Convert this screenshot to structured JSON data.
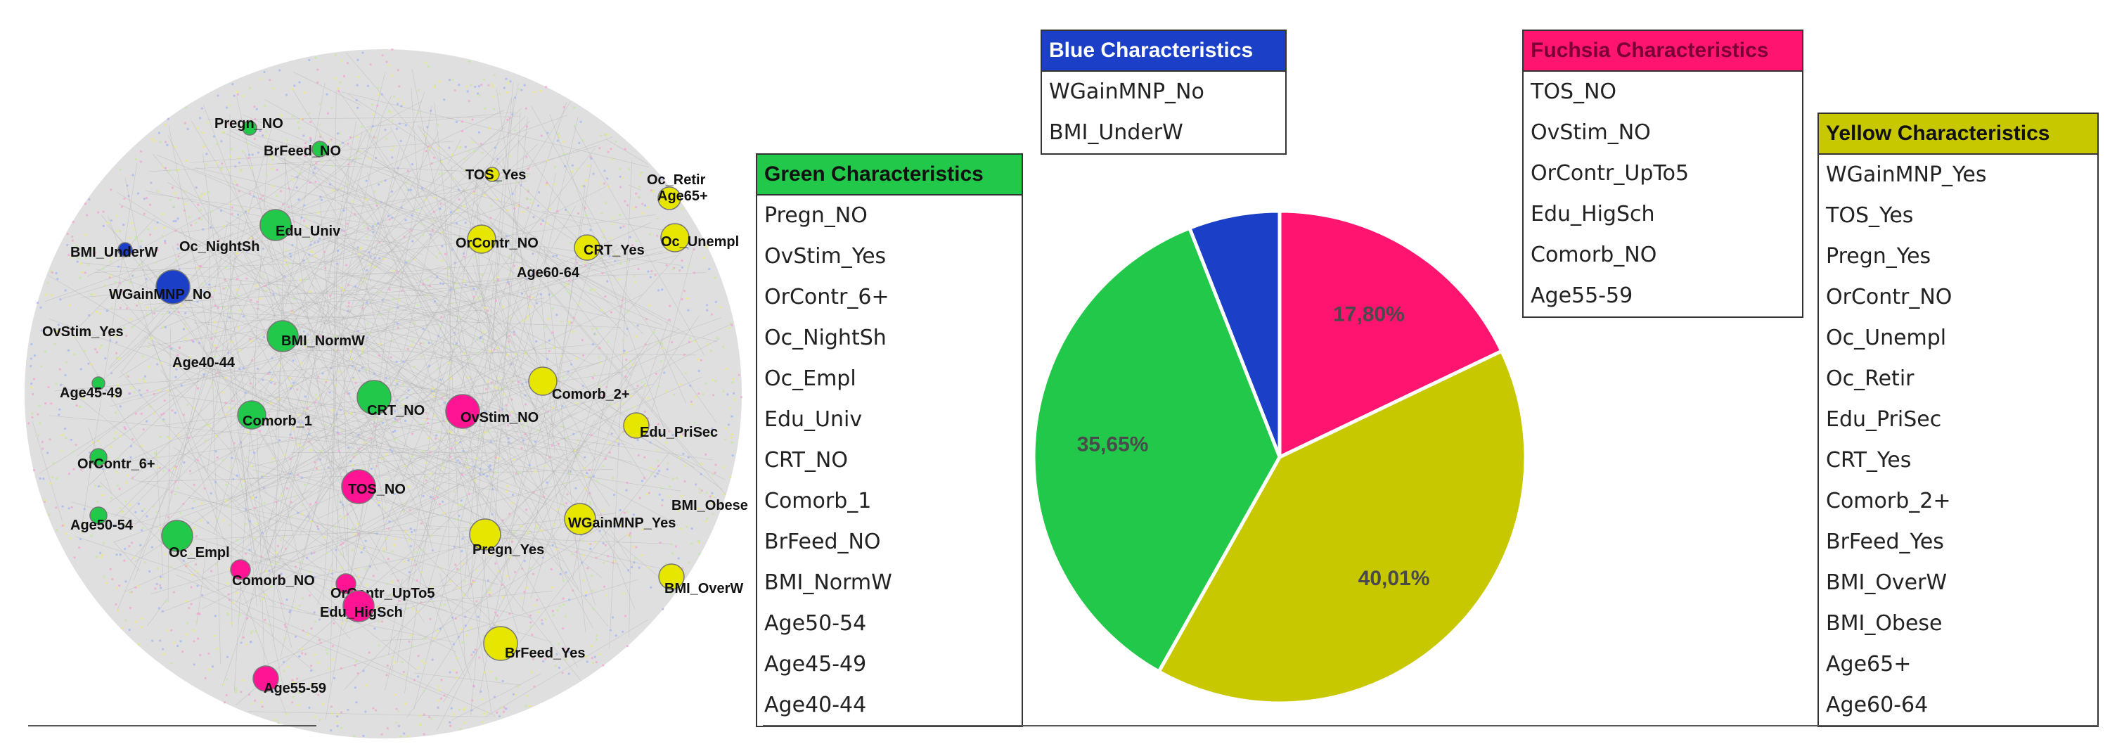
{
  "legends": {
    "green": {
      "title": "Green Characteristics",
      "color": "#22c84a",
      "items": [
        "Pregn_NO",
        "OvStim_Yes",
        "OrContr_6+",
        "Oc_NightSh",
        "Oc_Empl",
        "Edu_Univ",
        "CRT_NO",
        "Comorb_1",
        "BrFeed_NO",
        "BMI_NormW",
        "Age50-54",
        "Age45-49",
        "Age40-44"
      ]
    },
    "blue": {
      "title": "Blue Characteristics",
      "color": "#1c3fc8",
      "items": [
        "WGainMNP_No",
        "BMI_UnderW"
      ]
    },
    "fuchsia": {
      "title": "Fuchsia Characteristics",
      "color": "#ff1470",
      "items": [
        "TOS_NO",
        "OvStim_NO",
        "OrContr_UpTo5",
        "Edu_HigSch",
        "Comorb_NO",
        "Age55-59"
      ]
    },
    "yellow": {
      "title": "Yellow Characteristics",
      "color": "#c8c800",
      "items": [
        "WGainMNP_Yes",
        "TOS_Yes",
        "Pregn_Yes",
        "OrContr_NO",
        "Oc_Unempl",
        "Oc_Retir",
        "Edu_PriSec",
        "CRT_Yes",
        "Comorb_2+",
        "BrFeed_Yes",
        "BMI_OverW",
        "BMI_Obese",
        "Age65+",
        "Age60-64"
      ]
    }
  },
  "chart_data": {
    "type": "pie",
    "slices": [
      {
        "label": "5,93%",
        "value": 5.93,
        "color": "#1c3fc8"
      },
      {
        "label": "17,80%",
        "value": 17.8,
        "color": "#ff1470"
      },
      {
        "label": "40,01%",
        "value": 40.01,
        "color": "#c8c800"
      },
      {
        "label": "35,65%",
        "value": 35.65,
        "color": "#22c84a"
      }
    ]
  },
  "network": {
    "background_colors": [
      "#d6d6d6",
      "#c8e6a0",
      "#e8e880",
      "#f0a8d0",
      "#a8b8f0"
    ],
    "nodes": [
      {
        "label": "Pregn_NO",
        "color": "#22c84a"
      },
      {
        "label": "BrFeed_NO",
        "color": "#22c84a"
      },
      {
        "label": "Edu_Univ",
        "color": "#22c84a"
      },
      {
        "label": "Oc_NightSh",
        "color": "#22c84a"
      },
      {
        "label": "BMI_UnderW",
        "color": "#1c3fc8"
      },
      {
        "label": "WGainMNP_No",
        "color": "#1c3fc8"
      },
      {
        "label": "OvStim_Yes",
        "color": "#22c84a"
      },
      {
        "label": "BMI_NormW",
        "color": "#22c84a"
      },
      {
        "label": "Age40-44",
        "color": "#22c84a"
      },
      {
        "label": "Age45-49",
        "color": "#22c84a"
      },
      {
        "label": "Comorb_1",
        "color": "#22c84a"
      },
      {
        "label": "CRT_NO",
        "color": "#22c84a"
      },
      {
        "label": "OvStim_NO",
        "color": "#ff1493"
      },
      {
        "label": "OrContr_6+",
        "color": "#22c84a"
      },
      {
        "label": "TOS_NO",
        "color": "#ff1493"
      },
      {
        "label": "Age50-54",
        "color": "#22c84a"
      },
      {
        "label": "Oc_Empl",
        "color": "#22c84a"
      },
      {
        "label": "Comorb_NO",
        "color": "#ff1493"
      },
      {
        "label": "OrContr_UpTo5",
        "color": "#ff1493"
      },
      {
        "label": "Edu_HigSch",
        "color": "#ff1493"
      },
      {
        "label": "Age55-59",
        "color": "#ff1493"
      },
      {
        "label": "TOS_Yes",
        "color": "#e6e600"
      },
      {
        "label": "Oc_Retir",
        "color": "#e6e600"
      },
      {
        "label": "Age65+",
        "color": "#e6e600"
      },
      {
        "label": "OrContr_NO",
        "color": "#e6e600"
      },
      {
        "label": "CRT_Yes",
        "color": "#e6e600"
      },
      {
        "label": "Age60-64",
        "color": "#e6e600"
      },
      {
        "label": "Oc_Unempl",
        "color": "#e6e600"
      },
      {
        "label": "Comorb_2+",
        "color": "#e6e600"
      },
      {
        "label": "Edu_PriSec",
        "color": "#e6e600"
      },
      {
        "label": "BMI_Obese",
        "color": "#e6e600"
      },
      {
        "label": "WGainMNP_Yes",
        "color": "#e6e600"
      },
      {
        "label": "Pregn_Yes",
        "color": "#e6e600"
      },
      {
        "label": "BMI_OverW",
        "color": "#e6e600"
      },
      {
        "label": "BrFeed_Yes",
        "color": "#e6e600"
      }
    ]
  }
}
